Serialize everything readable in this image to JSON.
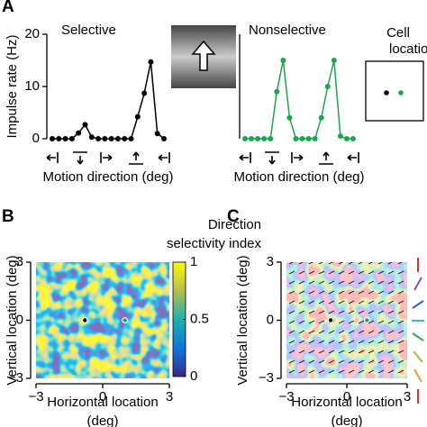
{
  "panels": [
    "A",
    "B",
    "C"
  ],
  "cell_locations": [
    "Cell",
    "locations"
  ],
  "chart_data": [
    {
      "type": "line",
      "title": "Selective",
      "ylabel": "Impulse rate (Hz)",
      "xlabel": "Motion direction (deg)",
      "ylim": [
        0,
        20
      ],
      "yticks": [
        0,
        10,
        20
      ],
      "series": [
        {
          "color": "#000000",
          "values": [
            0,
            0,
            0,
            0,
            1.1,
            2.7,
            0.3,
            0,
            0,
            0,
            0,
            0,
            0,
            4.2,
            8.7,
            14.7,
            1,
            0
          ]
        }
      ]
    },
    {
      "type": "line",
      "title": "Nonselective",
      "xlabel": "Motion direction (deg)",
      "ylim": [
        0,
        20
      ],
      "series": [
        {
          "color": "#1aa64a",
          "values": [
            0,
            0,
            0,
            0,
            0,
            9,
            15,
            4,
            0,
            0,
            0,
            0,
            4,
            10,
            15,
            0.5,
            0,
            0
          ]
        }
      ]
    },
    {
      "type": "heatmap",
      "colormap": "parula",
      "ylabel": "Vertical location (deg)",
      "xlabel": [
        "Horizontal location",
        "(deg)"
      ],
      "xlim": [
        -3,
        3
      ],
      "ylim": [
        -3,
        3
      ],
      "xticks": [
        {
          "value": -3,
          "label": "−3"
        },
        0,
        3
      ],
      "yticks": [
        {
          "value": -3,
          "label": "−3"
        },
        0,
        3
      ],
      "cells": {
        "x": [
          -0.8,
          1
        ],
        "y": [
          0,
          0
        ],
        "colors": [
          "#000000",
          "#1aa64a"
        ]
      },
      "colorbar": {
        "title": [
          "Direction",
          "selectivity index"
        ],
        "lim": [
          0,
          1
        ],
        "ticks": [
          0,
          0.5,
          1
        ]
      }
    },
    {
      "type": "heatmap",
      "colormap": "hsv",
      "arrows": true,
      "ylabel": "Vertical location (deg)",
      "xlabel": [
        "Horizontal location",
        "(deg)"
      ],
      "xlim": [
        -3,
        3
      ],
      "ylim": [
        -3,
        3
      ],
      "xticks": [
        {
          "value": -3,
          "label": "−3"
        },
        0,
        3
      ],
      "yticks": [
        {
          "value": -3,
          "label": "−3"
        },
        0,
        3
      ],
      "cells": {
        "x": [
          -0.8,
          1
        ],
        "y": [
          0,
          0
        ],
        "colors": [
          "#000000",
          "#1aa64a"
        ]
      }
    }
  ]
}
